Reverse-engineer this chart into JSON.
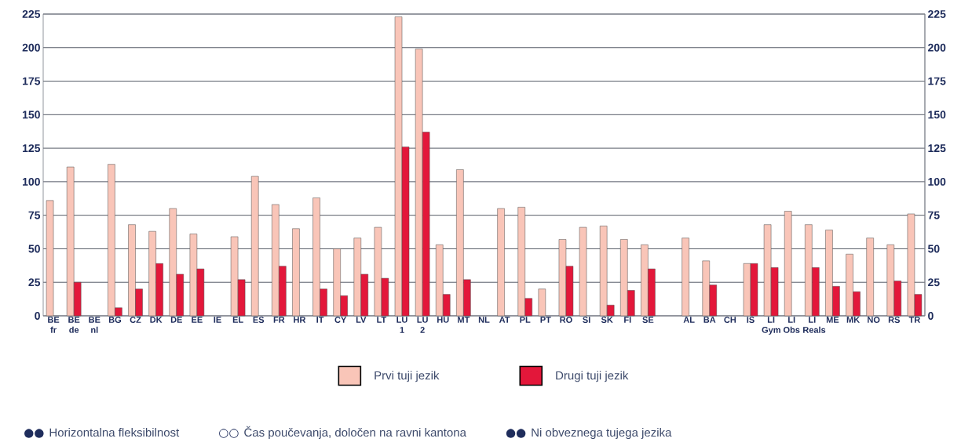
{
  "chart_data": {
    "type": "bar",
    "categories": [
      "BE fr",
      "BE de",
      "BE nl",
      "BG",
      "CZ",
      "DK",
      "DE",
      "EE",
      "IE",
      "EL",
      "ES",
      "FR",
      "HR",
      "IT",
      "CY",
      "LV",
      "LT",
      "LU 1",
      "LU 2",
      "HU",
      "MT",
      "NL",
      "AT",
      "PL",
      "PT",
      "RO",
      "SI",
      "SK",
      "FI",
      "SE",
      null,
      "AL",
      "BA",
      "CH",
      "IS",
      "LI Gym",
      "LI Obs",
      "LI Reals",
      "ME",
      "MK",
      "NO",
      "RS",
      "TR"
    ],
    "series": [
      {
        "name": "Prvi tuji jezik",
        "color": "#f9c5b8",
        "values": [
          86,
          111,
          null,
          113,
          68,
          63,
          80,
          61,
          null,
          59,
          104,
          83,
          65,
          88,
          50,
          58,
          66,
          223,
          199,
          53,
          109,
          null,
          80,
          81,
          20,
          57,
          66,
          67,
          57,
          53,
          null,
          58,
          41,
          null,
          39,
          68,
          78,
          68,
          64,
          46,
          58,
          53,
          76
        ]
      },
      {
        "name": "Drugi tuji jezik",
        "color": "#e3173a",
        "values": [
          null,
          25,
          null,
          6,
          20,
          39,
          31,
          35,
          null,
          27,
          null,
          37,
          null,
          20,
          15,
          31,
          28,
          126,
          137,
          16,
          27,
          null,
          null,
          13,
          null,
          37,
          null,
          8,
          19,
          35,
          null,
          null,
          23,
          null,
          39,
          36,
          null,
          36,
          22,
          18,
          null,
          26,
          16
        ]
      }
    ],
    "ylim": [
      0,
      225
    ],
    "yticks": [
      0,
      25,
      50,
      75,
      100,
      125,
      150,
      175,
      200,
      225
    ],
    "y2lim": [
      0,
      225
    ],
    "y2ticks": [
      0,
      25,
      50,
      75,
      100,
      125,
      150,
      175,
      200,
      225
    ],
    "grid": "y",
    "legend": "bottom",
    "annotations": [
      "●●",
      "Horizontalna fleksibilnost",
      "○○",
      "Čas poučevanja, določen na ravni kantona",
      "●●",
      "Ni obveznega tujega jezika"
    ]
  }
}
